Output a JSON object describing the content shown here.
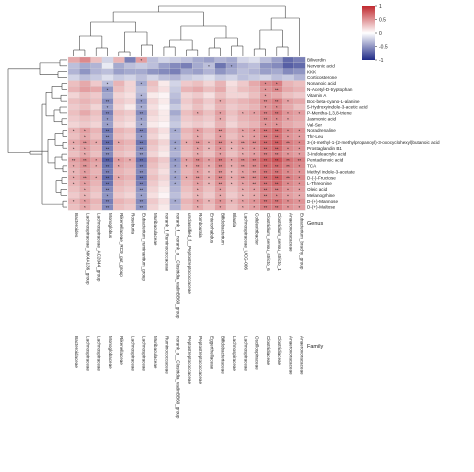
{
  "chart_data": {
    "type": "heatmap",
    "title": "",
    "xlabel": "",
    "ylabel": "",
    "row_labels": [
      "Biliverdin",
      "Nervonic acid",
      "KKK",
      "Corticosterone",
      "Nonanoic acid",
      "N-Acetyl-D-tryptophan",
      "Vitamin A",
      "Boc-beta-cyano-L-alanine",
      "5-Hydroxyindole-3-acetic acid",
      "P-Mentha-1,3,8-triene",
      "Jasmonic acid",
      "Val-Ser",
      "Noradrenaline",
      "Thr-Leu",
      "3-(4-methyl-1-(2-methylpropanoyl)-3-oxocyclohexyl)butanoic acid",
      "Prostaglandin B1",
      "3-Indoleacrylic acid",
      "Pentadienoic acid",
      "TCA",
      "Methyl indole-3-acetate",
      "D-(-)-Fructose",
      "L-Threonine",
      "Oleic acid",
      "Melanogrhine",
      "D-(+)-Mannose",
      "D-(+)-Maltose"
    ],
    "col_genus": [
      "Bacteroides",
      "Lachnospiraceae_NK4A136_group",
      "Lachnospiraceae_AC2044_group",
      "Monoglobus",
      "Rikenellaceae_RC9_gut_group",
      "Roseburia",
      "Eubacterium_ruminantium_group",
      "Muribaculaceae",
      "norank_f_Ruminococcaceae",
      "norank_f__norank_o__Clostridia_vadinBB60_group",
      "unclassified_f__Peptostreptococcaceae",
      "Romboutsia",
      "Enterorhabdus",
      "Bifidobacterium",
      "Blautia",
      "Lachnospiraceae_UCG-006",
      "Colidextribacter",
      "Clostridium_sensu_stricto_6",
      "Clostridium_sensu_stricto_1",
      "Anaerovoracaceae",
      "Eubacterium_brachy_group"
    ],
    "col_family": [
      "Bacteroidaceae",
      "Lachnospiraceae",
      "Lachnospiraceae",
      "Monoglobaceae",
      "Rikenellaceae",
      "Lachnospiraceae",
      "Lachnospiraceae",
      "Muribaculaceae",
      "Ruminococcaceae",
      "norank_o__Clostridia_vadinBB60_group",
      "Peptostreptococcaceae",
      "Peptostreptococcaceae",
      "Eggerthellaceae",
      "Bifidobacteriaceae",
      "Lachnospiraceae",
      "Lachnospiraceae",
      "Oscillospiraceae",
      "Clostridiaceae",
      "Clostridiaceae",
      "Anaerovoracaceae",
      "Anaerovoracaceae"
    ],
    "genus_header": "Genus",
    "family_header": "Family",
    "legend": {
      "ticks": [
        "1",
        "0.5",
        "0",
        "-0.5",
        "-1"
      ],
      "range": [
        -1,
        1
      ],
      "position": "top-right"
    },
    "colors": {
      "high": "#c0282e",
      "mid": "#ffffff",
      "low": "#1f2a87",
      "grid": "#d8d8d8"
    },
    "values": [
      [
        0.4,
        0.55,
        0.3,
        -0.2,
        0.35,
        -0.6,
        0.45,
        -0.3,
        -0.2,
        -0.25,
        -0.3,
        -0.4,
        -0.45,
        -0.35,
        -0.4,
        -0.2,
        -0.15,
        -0.3,
        -0.45,
        -0.7,
        -0.6
      ],
      [
        -0.3,
        -0.4,
        -0.35,
        -0.1,
        -0.4,
        -0.3,
        -0.25,
        -0.3,
        -0.45,
        -0.55,
        -0.6,
        -0.4,
        -0.3,
        -0.65,
        -0.45,
        -0.35,
        -0.3,
        -0.5,
        -0.55,
        -0.75,
        -0.7
      ],
      [
        -0.35,
        -0.5,
        -0.35,
        -0.3,
        -0.45,
        -0.4,
        -0.4,
        -0.5,
        -0.55,
        -0.6,
        -0.4,
        -0.45,
        -0.35,
        -0.5,
        -0.4,
        -0.3,
        -0.35,
        -0.45,
        -0.4,
        -0.55,
        -0.5
      ],
      [
        -0.2,
        -0.3,
        -0.25,
        -0.15,
        -0.25,
        -0.2,
        -0.3,
        -0.2,
        -0.3,
        -0.35,
        -0.25,
        -0.2,
        -0.15,
        -0.25,
        -0.2,
        -0.3,
        -0.25,
        -0.2,
        -0.3,
        -0.25,
        -0.35
      ],
      [
        0.3,
        0.4,
        0.25,
        -0.3,
        0.35,
        0.2,
        -0.4,
        0.3,
        0.1,
        -0.2,
        0.25,
        0.3,
        0.2,
        0.35,
        0.15,
        0.25,
        0.4,
        0.55,
        0.6,
        0.35,
        0.3
      ],
      [
        0.35,
        0.45,
        0.4,
        -0.5,
        0.3,
        0.2,
        -0.3,
        0.25,
        0.15,
        -0.25,
        0.35,
        0.4,
        0.3,
        0.4,
        0.2,
        0.3,
        0.35,
        0.5,
        0.55,
        0.4,
        0.35
      ],
      [
        0.2,
        0.3,
        0.25,
        -0.4,
        0.2,
        0.15,
        -0.35,
        0.1,
        0.05,
        -0.3,
        0.2,
        0.25,
        0.15,
        0.3,
        0.2,
        0.2,
        0.3,
        0.45,
        0.4,
        0.3,
        0.25
      ],
      [
        0.3,
        0.35,
        0.3,
        -0.55,
        0.25,
        0.2,
        -0.5,
        0.2,
        0.1,
        -0.35,
        0.25,
        0.35,
        0.25,
        0.4,
        0.3,
        0.35,
        0.4,
        0.55,
        0.6,
        0.45,
        0.4
      ],
      [
        0.25,
        0.3,
        0.2,
        -0.45,
        0.2,
        0.1,
        -0.4,
        0.15,
        0.05,
        -0.25,
        0.2,
        0.3,
        0.2,
        0.35,
        0.25,
        0.3,
        0.35,
        0.5,
        0.55,
        0.4,
        0.3
      ],
      [
        0.3,
        0.4,
        0.3,
        -0.6,
        0.3,
        0.25,
        -0.55,
        0.2,
        0.1,
        -0.4,
        0.3,
        0.4,
        0.3,
        0.45,
        0.3,
        0.4,
        0.45,
        0.6,
        0.65,
        0.5,
        0.45
      ],
      [
        0.25,
        0.3,
        0.25,
        -0.5,
        0.25,
        0.2,
        -0.45,
        0.15,
        0.1,
        -0.3,
        0.25,
        0.3,
        0.25,
        0.4,
        0.25,
        0.35,
        0.4,
        0.55,
        0.55,
        0.45,
        0.4
      ],
      [
        0.2,
        0.25,
        0.2,
        -0.45,
        0.2,
        0.15,
        -0.4,
        0.1,
        0.05,
        -0.25,
        0.2,
        0.25,
        0.2,
        0.35,
        0.2,
        0.3,
        0.35,
        0.5,
        0.5,
        0.4,
        0.35
      ],
      [
        0.35,
        0.45,
        0.35,
        -0.65,
        0.35,
        0.3,
        -0.6,
        0.25,
        0.15,
        -0.4,
        0.35,
        0.45,
        0.35,
        0.5,
        0.35,
        0.45,
        0.5,
        0.65,
        0.7,
        0.55,
        0.5
      ],
      [
        0.3,
        0.4,
        0.3,
        -0.55,
        0.3,
        0.25,
        -0.5,
        0.2,
        0.1,
        -0.35,
        0.3,
        0.4,
        0.3,
        0.45,
        0.3,
        0.4,
        0.45,
        0.6,
        0.65,
        0.5,
        0.45
      ],
      [
        0.4,
        0.5,
        0.4,
        -0.7,
        0.4,
        0.35,
        -0.65,
        0.3,
        0.2,
        -0.45,
        0.4,
        0.5,
        0.4,
        0.55,
        0.4,
        0.5,
        0.55,
        0.7,
        0.75,
        0.6,
        0.55
      ],
      [
        0.35,
        0.45,
        0.35,
        -0.6,
        0.35,
        0.3,
        -0.55,
        0.25,
        0.15,
        -0.4,
        0.35,
        0.45,
        0.35,
        0.5,
        0.35,
        0.45,
        0.5,
        0.65,
        0.7,
        0.55,
        0.5
      ],
      [
        0.3,
        0.4,
        0.3,
        -0.55,
        0.3,
        0.25,
        -0.5,
        0.2,
        0.1,
        -0.35,
        0.3,
        0.4,
        0.3,
        0.45,
        0.3,
        0.4,
        0.45,
        0.6,
        0.6,
        0.5,
        0.45
      ],
      [
        0.45,
        0.55,
        0.45,
        -0.75,
        0.45,
        0.4,
        -0.7,
        0.35,
        0.25,
        -0.5,
        0.45,
        0.55,
        0.45,
        0.6,
        0.45,
        0.55,
        0.6,
        0.75,
        0.8,
        0.65,
        0.6
      ],
      [
        0.4,
        0.5,
        0.4,
        -0.65,
        0.4,
        0.35,
        -0.6,
        0.3,
        0.2,
        -0.45,
        0.4,
        0.5,
        0.4,
        0.55,
        0.4,
        0.5,
        0.55,
        0.7,
        0.7,
        0.6,
        0.55
      ],
      [
        0.35,
        0.45,
        0.35,
        -0.6,
        0.35,
        0.3,
        -0.55,
        0.25,
        0.15,
        -0.4,
        0.35,
        0.45,
        0.35,
        0.5,
        0.35,
        0.45,
        0.5,
        0.65,
        0.65,
        0.55,
        0.5
      ],
      [
        0.4,
        0.5,
        0.4,
        -0.7,
        0.4,
        0.35,
        -0.65,
        0.3,
        0.2,
        -0.45,
        0.4,
        0.5,
        0.4,
        0.55,
        0.4,
        0.5,
        0.55,
        0.7,
        0.75,
        0.6,
        0.55
      ],
      [
        0.35,
        0.45,
        0.35,
        -0.65,
        0.35,
        0.3,
        -0.6,
        0.25,
        0.15,
        -0.4,
        0.35,
        0.45,
        0.35,
        0.5,
        0.35,
        0.45,
        0.5,
        0.65,
        0.7,
        0.55,
        0.5
      ],
      [
        0.3,
        0.4,
        0.3,
        -0.55,
        0.3,
        0.25,
        -0.5,
        0.2,
        0.1,
        -0.35,
        0.3,
        0.4,
        0.3,
        0.45,
        0.3,
        0.4,
        0.45,
        0.6,
        0.6,
        0.5,
        0.45
      ],
      [
        0.25,
        0.35,
        0.25,
        -0.5,
        0.25,
        0.2,
        -0.45,
        0.15,
        0.05,
        -0.3,
        0.25,
        0.35,
        0.25,
        0.4,
        0.25,
        0.35,
        0.4,
        0.55,
        0.55,
        0.45,
        0.4
      ],
      [
        0.35,
        0.45,
        0.35,
        -0.6,
        0.35,
        0.3,
        -0.55,
        0.25,
        0.15,
        -0.4,
        0.35,
        0.45,
        0.35,
        0.5,
        0.35,
        0.45,
        0.5,
        0.65,
        0.65,
        0.55,
        0.5
      ],
      [
        0.3,
        0.4,
        0.3,
        -0.55,
        0.3,
        0.25,
        -0.5,
        0.2,
        0.1,
        -0.35,
        0.3,
        0.4,
        0.3,
        0.45,
        0.3,
        0.4,
        0.45,
        0.6,
        0.6,
        0.5,
        0.45
      ]
    ],
    "significance": [
      [
        "",
        "",
        "",
        "",
        "",
        "",
        "*",
        "",
        "",
        "",
        "",
        "",
        "",
        "",
        "",
        "",
        "",
        "",
        "",
        "",
        ""
      ],
      [
        "",
        "",
        "",
        "",
        "",
        "",
        "",
        "",
        "",
        "",
        "",
        "",
        "*",
        "",
        "*",
        "",
        "",
        "",
        "",
        "",
        ""
      ],
      [
        "",
        "",
        "",
        "",
        "",
        "",
        "",
        "",
        "",
        "",
        "",
        "",
        "",
        "",
        "",
        "",
        "",
        "",
        "",
        "",
        ""
      ],
      [
        "",
        "",
        "",
        "",
        "",
        "",
        "",
        "",
        "",
        "",
        "",
        "",
        "",
        "",
        "",
        "",
        "",
        "",
        "",
        "",
        ""
      ],
      [
        "",
        "",
        "",
        "*",
        "",
        "",
        "*",
        "",
        "",
        "",
        "",
        "",
        "",
        "",
        "",
        "",
        "",
        "*",
        "*",
        "",
        ""
      ],
      [
        "",
        "",
        "",
        "*",
        "",
        "",
        "",
        "",
        "",
        "",
        "",
        "",
        "",
        "",
        "",
        "",
        "",
        "*",
        "**",
        "",
        ""
      ],
      [
        "",
        "",
        "",
        "",
        "",
        "",
        "*",
        "",
        "",
        "",
        "",
        "",
        "",
        "",
        "",
        "",
        "",
        "*",
        "",
        "",
        ""
      ],
      [
        "",
        "",
        "",
        "**",
        "",
        "",
        "*",
        "",
        "",
        "",
        "",
        "",
        "",
        "*",
        "",
        "",
        "",
        "**",
        "**",
        "*",
        ""
      ],
      [
        "",
        "",
        "",
        "*",
        "",
        "",
        "*",
        "",
        "",
        "",
        "",
        "",
        "",
        "",
        "",
        "",
        "",
        "*",
        "*",
        "",
        ""
      ],
      [
        "",
        "",
        "",
        "**",
        "",
        "",
        "**",
        "",
        "",
        "",
        "",
        "*",
        "",
        "*",
        "",
        "*",
        "*",
        "**",
        "**",
        "*",
        "*"
      ],
      [
        "",
        "",
        "",
        "*",
        "",
        "",
        "*",
        "",
        "",
        "",
        "",
        "",
        "",
        "*",
        "",
        "",
        "",
        "**",
        "*",
        "*",
        ""
      ],
      [
        "",
        "",
        "",
        "*",
        "",
        "",
        "*",
        "",
        "",
        "",
        "",
        "",
        "",
        "",
        "",
        "",
        "",
        "*",
        "*",
        "",
        ""
      ],
      [
        "*",
        "*",
        "",
        "**",
        "",
        "",
        "**",
        "",
        "",
        "*",
        "",
        "*",
        "",
        "**",
        "",
        "*",
        "*",
        "**",
        "**",
        "*",
        "*"
      ],
      [
        "",
        "*",
        "",
        "**",
        "",
        "",
        "*",
        "",
        "",
        "",
        "",
        "*",
        "",
        "*",
        "",
        "*",
        "*",
        "**",
        "**",
        "*",
        "*"
      ],
      [
        "*",
        "**",
        "*",
        "**",
        "*",
        "",
        "**",
        "",
        "",
        "*",
        "*",
        "**",
        "*",
        "**",
        "*",
        "**",
        "**",
        "**",
        "**",
        "**",
        "*"
      ],
      [
        "*",
        "*",
        "",
        "**",
        "",
        "",
        "**",
        "",
        "",
        "*",
        "",
        "*",
        "*",
        "*",
        "*",
        "*",
        "*",
        "**",
        "**",
        "*",
        "*"
      ],
      [
        "",
        "*",
        "",
        "**",
        "",
        "",
        "**",
        "",
        "",
        "",
        "",
        "*",
        "",
        "*",
        "",
        "*",
        "*",
        "**",
        "**",
        "*",
        "*"
      ],
      [
        "**",
        "**",
        "*",
        "**",
        "*",
        "*",
        "**",
        "",
        "",
        "*",
        "*",
        "**",
        "*",
        "**",
        "*",
        "**",
        "**",
        "**",
        "**",
        "**",
        "**"
      ],
      [
        "*",
        "**",
        "*",
        "**",
        "*",
        "",
        "**",
        "",
        "",
        "*",
        "*",
        "**",
        "*",
        "**",
        "*",
        "**",
        "**",
        "**",
        "**",
        "**",
        "*"
      ],
      [
        "*",
        "*",
        "",
        "**",
        "",
        "",
        "**",
        "",
        "",
        "*",
        "",
        "*",
        "*",
        "**",
        "*",
        "*",
        "**",
        "**",
        "**",
        "*",
        "*"
      ],
      [
        "*",
        "**",
        "*",
        "**",
        "*",
        "",
        "**",
        "",
        "",
        "*",
        "*",
        "**",
        "*",
        "**",
        "*",
        "**",
        "**",
        "**",
        "**",
        "**",
        "*"
      ],
      [
        "*",
        "*",
        "",
        "**",
        "",
        "",
        "**",
        "",
        "",
        "*",
        "",
        "*",
        "*",
        "**",
        "*",
        "*",
        "**",
        "**",
        "**",
        "*",
        "*"
      ],
      [
        "",
        "*",
        "",
        "**",
        "",
        "",
        "**",
        "",
        "",
        "",
        "",
        "*",
        "",
        "*",
        "",
        "*",
        "*",
        "**",
        "**",
        "*",
        "*"
      ],
      [
        "",
        "*",
        "",
        "*",
        "",
        "",
        "*",
        "",
        "",
        "",
        "",
        "*",
        "",
        "*",
        "",
        "*",
        "*",
        "**",
        "*",
        "*",
        "*"
      ],
      [
        "*",
        "*",
        "",
        "**",
        "",
        "",
        "**",
        "",
        "",
        "*",
        "",
        "*",
        "*",
        "*",
        "*",
        "*",
        "*",
        "**",
        "**",
        "*",
        "*"
      ],
      [
        "",
        "*",
        "",
        "**",
        "",
        "",
        "**",
        "",
        "",
        "",
        "",
        "*",
        "",
        "*",
        "",
        "*",
        "*",
        "**",
        "**",
        "*",
        "*"
      ]
    ]
  }
}
